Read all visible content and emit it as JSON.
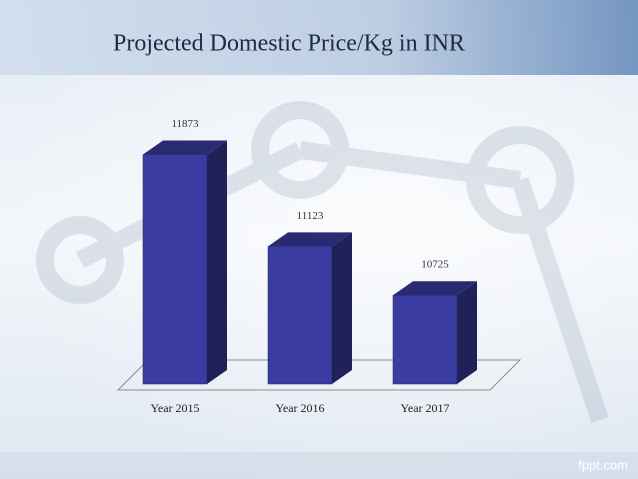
{
  "chart_data": {
    "type": "bar3d",
    "title": "Projected Domestic Price/Kg in INR",
    "categories": [
      "Year 2015",
      "Year 2016",
      "Year 2017"
    ],
    "values": [
      11873,
      11123,
      10725
    ],
    "color": "#3a3ca2",
    "ylim": [
      10000,
      12000
    ]
  },
  "footer": "fppt.com"
}
